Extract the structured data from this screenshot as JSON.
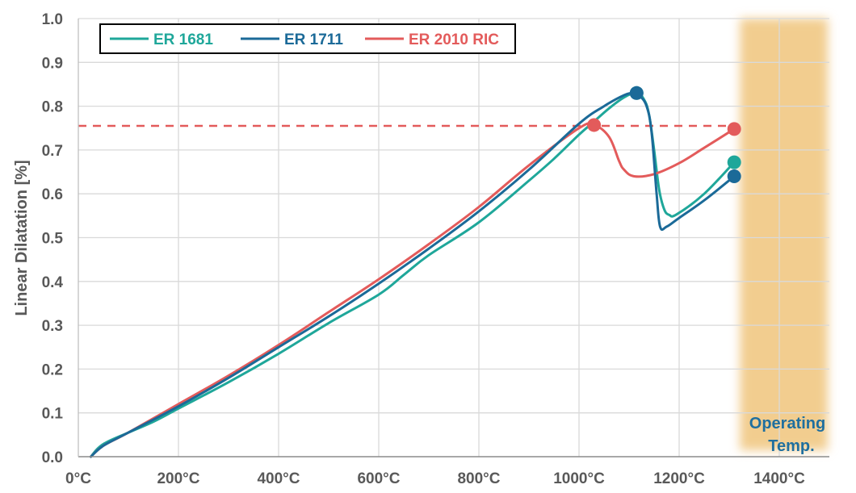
{
  "chart_data": {
    "type": "line",
    "ylabel": "Linear Dilatation [%]",
    "xlabel": "",
    "xlim": [
      -20,
      1500
    ],
    "ylim": [
      0,
      1.0
    ],
    "x_ticks": [
      0,
      200,
      400,
      600,
      800,
      1000,
      1200,
      1400
    ],
    "x_tick_labels": [
      "0°C",
      "200°C",
      "400°C",
      "600°C",
      "800°C",
      "1000°C",
      "1200°C",
      "1400°C"
    ],
    "y_ticks": [
      0,
      0.1,
      0.2,
      0.3,
      0.4,
      0.5,
      0.6,
      0.7,
      0.8,
      0.9,
      1.0
    ],
    "y_tick_labels": [
      "0.0",
      "0.1",
      "0.2",
      "0.3",
      "0.4",
      "0.5",
      "0.6",
      "0.7",
      "0.8",
      "0.9",
      "1.0"
    ],
    "grid": true,
    "legend_position": "top-left",
    "series": [
      {
        "name": "ER 1681",
        "color": "#1fa79a",
        "x": [
          25,
          40,
          60,
          100,
          150,
          200,
          300,
          400,
          500,
          600,
          650,
          700,
          800,
          900,
          950,
          1000,
          1030,
          1060,
          1090,
          1115,
          1130,
          1140,
          1150,
          1160,
          1170,
          1180,
          1195,
          1250,
          1310
        ],
        "y": [
          0,
          0.02,
          0.035,
          0.055,
          0.08,
          0.11,
          0.17,
          0.235,
          0.305,
          0.37,
          0.415,
          0.46,
          0.535,
          0.63,
          0.68,
          0.735,
          0.765,
          0.795,
          0.82,
          0.83,
          0.815,
          0.78,
          0.7,
          0.61,
          0.565,
          0.552,
          0.553,
          0.6,
          0.672
        ]
      },
      {
        "name": "ER 1711",
        "color": "#1b6a98",
        "x": [
          25,
          50,
          100,
          200,
          300,
          400,
          500,
          600,
          700,
          800,
          900,
          1000,
          1050,
          1090,
          1110,
          1120,
          1135,
          1145,
          1155,
          1162,
          1175,
          1200,
          1250,
          1310
        ],
        "y": [
          0,
          0.025,
          0.055,
          0.115,
          0.18,
          0.25,
          0.32,
          0.395,
          0.475,
          0.56,
          0.655,
          0.76,
          0.8,
          0.825,
          0.83,
          0.825,
          0.8,
          0.74,
          0.6,
          0.525,
          0.525,
          0.545,
          0.585,
          0.64
        ]
      },
      {
        "name": "ER 2010 RIC",
        "color": "#e35b5b",
        "x": [
          25,
          50,
          100,
          200,
          300,
          400,
          500,
          600,
          700,
          800,
          900,
          1000,
          1030,
          1060,
          1080,
          1090,
          1110,
          1150,
          1200,
          1250,
          1310
        ],
        "y": [
          0,
          0.025,
          0.055,
          0.12,
          0.185,
          0.255,
          0.33,
          0.405,
          0.485,
          0.57,
          0.665,
          0.75,
          0.757,
          0.73,
          0.675,
          0.655,
          0.64,
          0.645,
          0.67,
          0.705,
          0.748
        ]
      }
    ],
    "markers": [
      {
        "series": "ER 1681",
        "color": "#1fa79a",
        "x": 1115,
        "y": 0.83
      },
      {
        "series": "ER 1681",
        "color": "#1fa79a",
        "x": 1310,
        "y": 0.672
      },
      {
        "series": "ER 1711",
        "color": "#1b6a98",
        "x": 1115,
        "y": 0.83
      },
      {
        "series": "ER 1711",
        "color": "#1b6a98",
        "x": 1310,
        "y": 0.64
      },
      {
        "series": "ER 2010 RIC",
        "color": "#e35b5b",
        "x": 1030,
        "y": 0.757
      },
      {
        "series": "ER 2010 RIC",
        "color": "#e35b5b",
        "x": 1310,
        "y": 0.748
      }
    ],
    "reference_line": {
      "y": 0.755,
      "x_start": -20,
      "x_end": 1310,
      "color": "#e35b5b",
      "style": "dashed"
    },
    "operating_band": {
      "x_start": 1315,
      "x_end": 1500,
      "color": "#f2cd8f",
      "label_line1": "Operating",
      "label_line2": "Temp.",
      "label_color": "#1f6f9f"
    }
  }
}
